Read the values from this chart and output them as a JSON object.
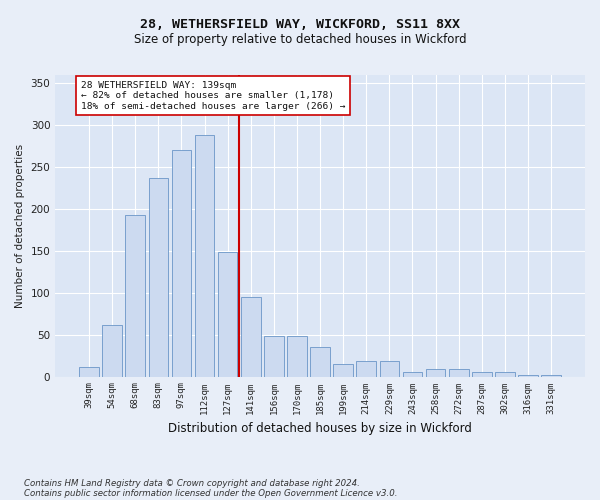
{
  "title_line1": "28, WETHERSFIELD WAY, WICKFORD, SS11 8XX",
  "title_line2": "Size of property relative to detached houses in Wickford",
  "xlabel": "Distribution of detached houses by size in Wickford",
  "ylabel": "Number of detached properties",
  "categories": [
    "39sqm",
    "54sqm",
    "68sqm",
    "83sqm",
    "97sqm",
    "112sqm",
    "127sqm",
    "141sqm",
    "156sqm",
    "170sqm",
    "185sqm",
    "199sqm",
    "214sqm",
    "229sqm",
    "243sqm",
    "258sqm",
    "272sqm",
    "287sqm",
    "302sqm",
    "316sqm",
    "331sqm"
  ],
  "values": [
    11,
    61,
    193,
    237,
    270,
    288,
    149,
    95,
    48,
    48,
    35,
    15,
    18,
    19,
    5,
    9,
    9,
    6,
    6,
    2,
    2
  ],
  "bar_color": "#ccdaf0",
  "bar_edge_color": "#6a96c8",
  "vline_color": "#cc0000",
  "background_color": "#dce6f5",
  "fig_background_color": "#e8eef8",
  "grid_color": "#ffffff",
  "marker_label_line1": "28 WETHERSFIELD WAY: 139sqm",
  "marker_label_line2": "← 82% of detached houses are smaller (1,178)",
  "marker_label_line3": "18% of semi-detached houses are larger (266) →",
  "footnote_line1": "Contains HM Land Registry data © Crown copyright and database right 2024.",
  "footnote_line2": "Contains public sector information licensed under the Open Government Licence v3.0.",
  "ylim": [
    0,
    360
  ],
  "yticks": [
    0,
    50,
    100,
    150,
    200,
    250,
    300,
    350
  ],
  "vline_x": 6.5
}
